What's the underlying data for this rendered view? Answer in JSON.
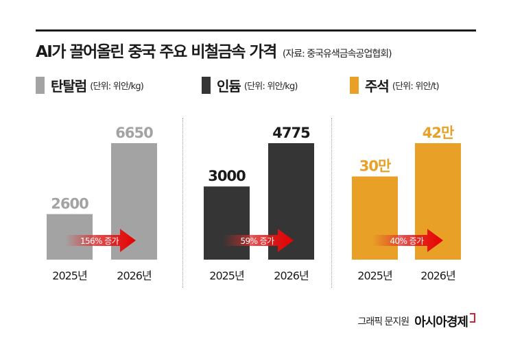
{
  "header": {
    "title": "AI가 끌어올린 중국 주요 비철금속 가격",
    "source": "(자료: 중국유색금속공업협회)"
  },
  "chart_data": [
    {
      "type": "bar",
      "name": "탄탈럼",
      "unit": "(단위: 위안/kg)",
      "color": "#a3a3a3",
      "label_color": "#a3a3a3",
      "categories": [
        "2025년",
        "2026년"
      ],
      "values": [
        2600,
        6650
      ],
      "value_labels": [
        "2600",
        "6650"
      ],
      "annotation": "156% 증가"
    },
    {
      "type": "bar",
      "name": "인듐",
      "unit": "(단위: 위안/kg)",
      "color": "#353535",
      "label_color": "#1a1a1a",
      "categories": [
        "2025년",
        "2026년"
      ],
      "values": [
        3000,
        4775
      ],
      "value_labels": [
        "3000",
        "4775"
      ],
      "annotation": "59% 증가"
    },
    {
      "type": "bar",
      "name": "주석",
      "unit": "(단위: 위안/t)",
      "color": "#e8a027",
      "label_color": "#e8a027",
      "categories": [
        "2025년",
        "2026년"
      ],
      "values": [
        300000,
        420000
      ],
      "value_labels": [
        "30만",
        "42만"
      ],
      "annotation": "40% 증가"
    }
  ],
  "footer": {
    "credit": "그래픽 문지원",
    "brand": "아시아경제"
  }
}
